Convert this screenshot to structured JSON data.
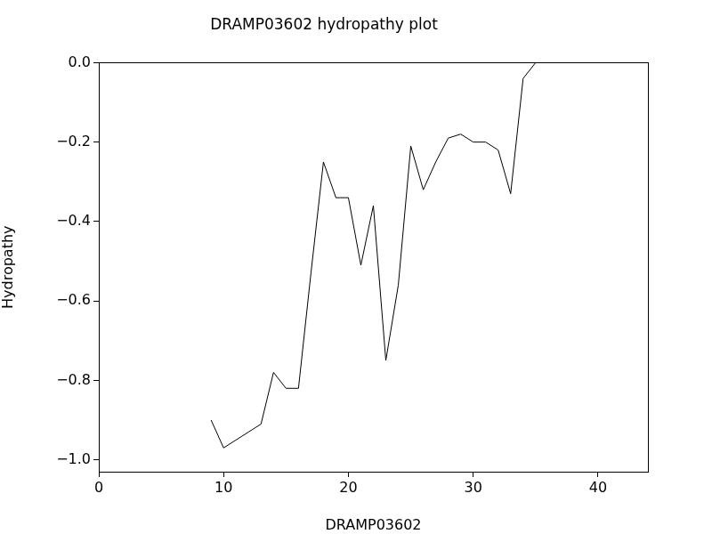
{
  "chart_data": {
    "type": "line",
    "title": "DRAMP03602 hydropathy plot",
    "x_label": "DRAMP03602",
    "y_label": "Hydropathy",
    "x": [
      9,
      10,
      11,
      12,
      13,
      14,
      15,
      16,
      17,
      18,
      19,
      20,
      21,
      22,
      23,
      24,
      25,
      26,
      27,
      28,
      29,
      30,
      31,
      32,
      33,
      34,
      35
    ],
    "values": [
      -0.9,
      -0.97,
      -0.95,
      -0.93,
      -0.91,
      -0.78,
      -0.82,
      -0.82,
      -0.53,
      -0.25,
      -0.34,
      -0.34,
      -0.51,
      -0.36,
      -0.75,
      -0.56,
      -0.21,
      -0.32,
      -0.25,
      -0.19,
      -0.18,
      -0.2,
      -0.2,
      -0.22,
      -0.33,
      -0.04,
      0.0
    ],
    "color": "#000000",
    "marker": "none",
    "xlim": [
      0,
      44
    ],
    "xticks": [
      0,
      10,
      20,
      30,
      40
    ],
    "ylim": [
      -1.03,
      0
    ],
    "yticks": [
      {
        "value": -1.0,
        "label": "−1.0"
      },
      {
        "value": -0.8,
        "label": "−0.8"
      },
      {
        "value": -0.6,
        "label": "−0.6"
      },
      {
        "value": -0.4,
        "label": "−0.4"
      },
      {
        "value": -0.2,
        "label": "−0.2"
      },
      {
        "value": 0.0,
        "label": "0.0"
      }
    ],
    "grid": false
  }
}
